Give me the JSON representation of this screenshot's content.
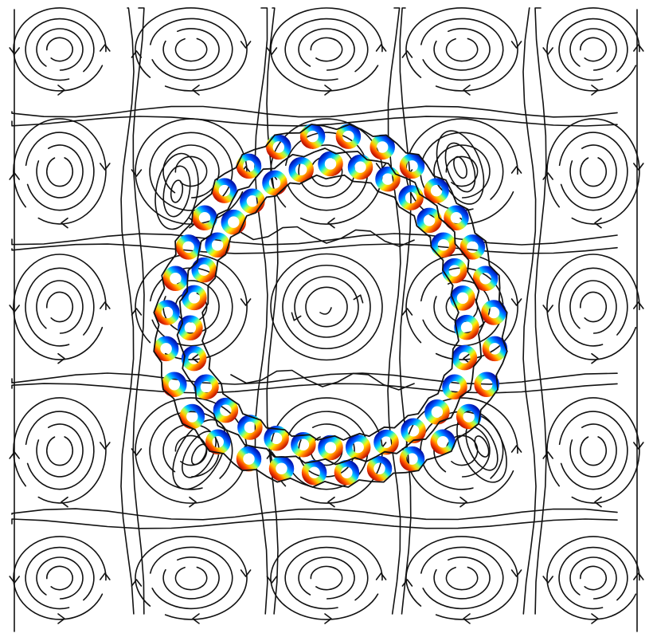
{
  "figure": {
    "description_visible_text": "",
    "colors": {
      "background": "#ffffff",
      "streamline": "#111111",
      "ring_palette": [
        "#00008b",
        "#0050ff",
        "#00d0ff",
        "#7fff7f",
        "#ffee00",
        "#ff6a00",
        "#b00000"
      ]
    },
    "vortex_lattice": {
      "columns": 5,
      "rows": 5,
      "center_cell_occupied_by_ring_cluster": true
    },
    "ring_cluster": {
      "shape": "closed annular chain of colored tori",
      "count": 60
    }
  }
}
